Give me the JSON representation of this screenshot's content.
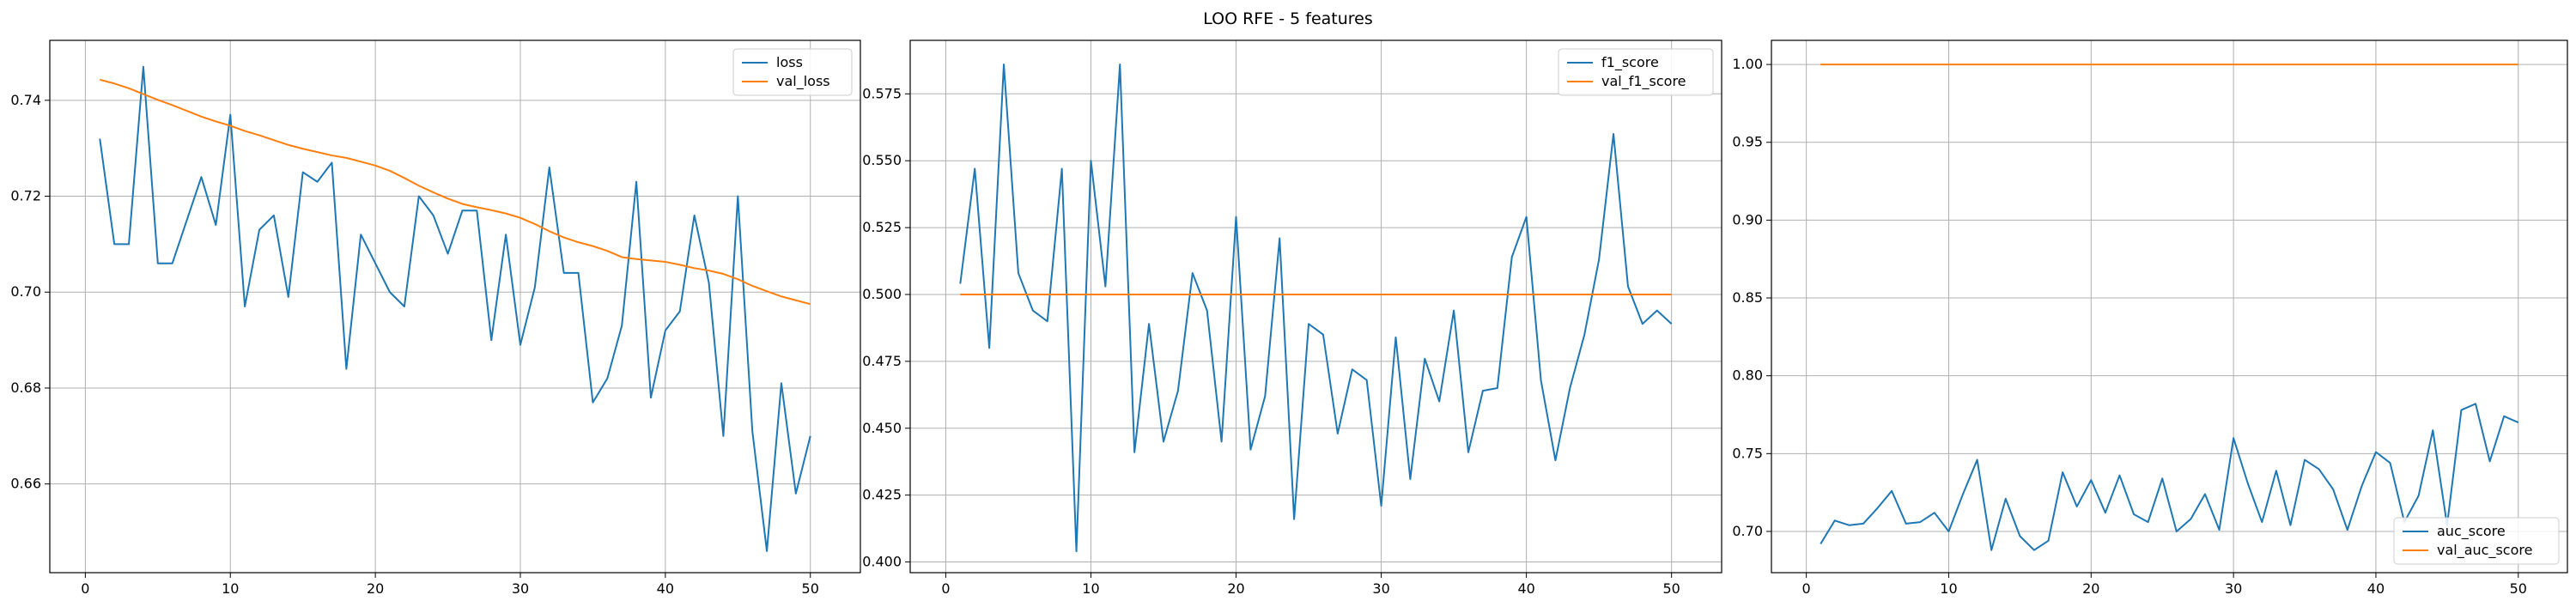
{
  "suptitle": "LOO RFE - 5 features",
  "colors": {
    "series_a": "#1f77b4",
    "series_b": "#ff7f0e",
    "grid": "#b0b0b0"
  },
  "chart_data": [
    {
      "type": "line",
      "title": "",
      "xlabel": "",
      "ylabel": "",
      "xlim": [
        -2.45,
        53.45
      ],
      "ylim": [
        0.6415,
        0.7525
      ],
      "xticks": [
        0,
        10,
        20,
        30,
        40,
        50
      ],
      "yticks": [
        0.66,
        0.68,
        0.7,
        0.72,
        0.74
      ],
      "ytick_labels": [
        "0.66",
        "0.68",
        "0.70",
        "0.72",
        "0.74"
      ],
      "grid": true,
      "legend_position": "top-right",
      "x": [
        1,
        2,
        3,
        4,
        5,
        6,
        7,
        8,
        9,
        10,
        11,
        12,
        13,
        14,
        15,
        16,
        17,
        18,
        19,
        20,
        21,
        22,
        23,
        24,
        25,
        26,
        27,
        28,
        29,
        30,
        31,
        32,
        33,
        34,
        35,
        36,
        37,
        38,
        39,
        40,
        41,
        42,
        43,
        44,
        45,
        46,
        47,
        48,
        49,
        50
      ],
      "series": [
        {
          "name": "loss",
          "values": [
            0.732,
            0.71,
            0.71,
            0.747,
            0.706,
            0.706,
            0.715,
            0.724,
            0.714,
            0.737,
            0.697,
            0.713,
            0.716,
            0.699,
            0.725,
            0.723,
            0.727,
            0.684,
            0.712,
            0.706,
            0.7,
            0.697,
            0.72,
            0.716,
            0.708,
            0.717,
            0.717,
            0.69,
            0.712,
            0.689,
            0.701,
            0.726,
            0.704,
            0.704,
            0.677,
            0.682,
            0.693,
            0.723,
            0.678,
            0.692,
            0.696,
            0.716,
            0.702,
            0.67,
            0.72,
            0.671,
            0.646,
            0.681,
            0.658,
            0.67
          ]
        },
        {
          "name": "val_loss",
          "values": [
            0.7443,
            0.7435,
            0.7425,
            0.7413,
            0.7401,
            0.739,
            0.7378,
            0.7366,
            0.7356,
            0.7347,
            0.7336,
            0.7327,
            0.7317,
            0.7307,
            0.7299,
            0.7292,
            0.7285,
            0.728,
            0.7272,
            0.7264,
            0.7253,
            0.7238,
            0.7222,
            0.7208,
            0.7195,
            0.7184,
            0.7177,
            0.7171,
            0.7164,
            0.7155,
            0.7142,
            0.7127,
            0.7114,
            0.7104,
            0.7096,
            0.7086,
            0.7073,
            0.7069,
            0.7066,
            0.7063,
            0.7057,
            0.705,
            0.7045,
            0.7038,
            0.7027,
            0.7013,
            0.7002,
            0.6991,
            0.6983,
            0.6975
          ]
        }
      ]
    },
    {
      "type": "line",
      "title": "",
      "xlabel": "",
      "ylabel": "",
      "xlim": [
        -2.45,
        53.45
      ],
      "ylim": [
        0.396,
        0.595
      ],
      "xticks": [
        0,
        10,
        20,
        30,
        40,
        50
      ],
      "yticks": [
        0.4,
        0.425,
        0.45,
        0.475,
        0.5,
        0.525,
        0.55,
        0.575
      ],
      "ytick_labels": [
        "0.400",
        "0.425",
        "0.450",
        "0.475",
        "0.500",
        "0.525",
        "0.550",
        "0.575"
      ],
      "grid": true,
      "legend_position": "top-right",
      "x": [
        1,
        2,
        3,
        4,
        5,
        6,
        7,
        8,
        9,
        10,
        11,
        12,
        13,
        14,
        15,
        16,
        17,
        18,
        19,
        20,
        21,
        22,
        23,
        24,
        25,
        26,
        27,
        28,
        29,
        30,
        31,
        32,
        33,
        34,
        35,
        36,
        37,
        38,
        39,
        40,
        41,
        42,
        43,
        44,
        45,
        46,
        47,
        48,
        49,
        50
      ],
      "series": [
        {
          "name": "f1_score",
          "values": [
            0.504,
            0.547,
            0.48,
            0.586,
            0.508,
            0.494,
            0.49,
            0.547,
            0.404,
            0.55,
            0.503,
            0.586,
            0.441,
            0.489,
            0.445,
            0.464,
            0.508,
            0.494,
            0.445,
            0.529,
            0.442,
            0.462,
            0.521,
            0.416,
            0.489,
            0.485,
            0.448,
            0.472,
            0.468,
            0.421,
            0.484,
            0.431,
            0.476,
            0.46,
            0.494,
            0.441,
            0.464,
            0.465,
            0.514,
            0.529,
            0.468,
            0.438,
            0.465,
            0.485,
            0.513,
            0.56,
            0.503,
            0.489,
            0.494,
            0.489
          ]
        },
        {
          "name": "val_f1_score",
          "values": [
            0.5,
            0.5,
            0.5,
            0.5,
            0.5,
            0.5,
            0.5,
            0.5,
            0.5,
            0.5,
            0.5,
            0.5,
            0.5,
            0.5,
            0.5,
            0.5,
            0.5,
            0.5,
            0.5,
            0.5,
            0.5,
            0.5,
            0.5,
            0.5,
            0.5,
            0.5,
            0.5,
            0.5,
            0.5,
            0.5,
            0.5,
            0.5,
            0.5,
            0.5,
            0.5,
            0.5,
            0.5,
            0.5,
            0.5,
            0.5,
            0.5,
            0.5,
            0.5,
            0.5,
            0.5,
            0.5,
            0.5,
            0.5,
            0.5,
            0.5
          ]
        }
      ]
    },
    {
      "type": "line",
      "title": "",
      "xlabel": "",
      "ylabel": "",
      "xlim": [
        -2.45,
        53.45
      ],
      "ylim": [
        0.6735,
        1.0155
      ],
      "xticks": [
        0,
        10,
        20,
        30,
        40,
        50
      ],
      "yticks": [
        0.7,
        0.75,
        0.8,
        0.85,
        0.9,
        0.95,
        1.0
      ],
      "ytick_labels": [
        "0.70",
        "0.75",
        "0.80",
        "0.85",
        "0.90",
        "0.95",
        "1.00"
      ],
      "grid": true,
      "legend_position": "bottom-right",
      "x": [
        1,
        2,
        3,
        4,
        5,
        6,
        7,
        8,
        9,
        10,
        11,
        12,
        13,
        14,
        15,
        16,
        17,
        18,
        19,
        20,
        21,
        22,
        23,
        24,
        25,
        26,
        27,
        28,
        29,
        30,
        31,
        32,
        33,
        34,
        35,
        36,
        37,
        38,
        39,
        40,
        41,
        42,
        43,
        44,
        45,
        46,
        47,
        48,
        49,
        50
      ],
      "series": [
        {
          "name": "auc_score",
          "values": [
            0.692,
            0.707,
            0.704,
            0.705,
            0.715,
            0.726,
            0.705,
            0.706,
            0.712,
            0.7,
            0.724,
            0.746,
            0.688,
            0.721,
            0.697,
            0.688,
            0.694,
            0.738,
            0.716,
            0.733,
            0.712,
            0.736,
            0.711,
            0.706,
            0.734,
            0.7,
            0.708,
            0.724,
            0.701,
            0.76,
            0.731,
            0.706,
            0.739,
            0.704,
            0.746,
            0.74,
            0.727,
            0.701,
            0.729,
            0.751,
            0.744,
            0.706,
            0.723,
            0.765,
            0.704,
            0.778,
            0.782,
            0.745,
            0.774,
            0.77
          ]
        },
        {
          "name": "val_auc_score",
          "values": [
            1.0,
            1.0,
            1.0,
            1.0,
            1.0,
            1.0,
            1.0,
            1.0,
            1.0,
            1.0,
            1.0,
            1.0,
            1.0,
            1.0,
            1.0,
            1.0,
            1.0,
            1.0,
            1.0,
            1.0,
            1.0,
            1.0,
            1.0,
            1.0,
            1.0,
            1.0,
            1.0,
            1.0,
            1.0,
            1.0,
            1.0,
            1.0,
            1.0,
            1.0,
            1.0,
            1.0,
            1.0,
            1.0,
            1.0,
            1.0,
            1.0,
            1.0,
            1.0,
            1.0,
            1.0,
            1.0,
            1.0,
            1.0,
            1.0,
            1.0
          ]
        }
      ]
    }
  ]
}
